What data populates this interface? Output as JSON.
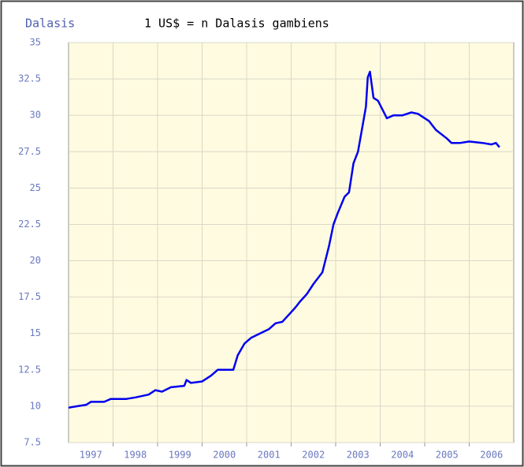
{
  "chart_data": {
    "type": "line",
    "unit_label": "Dalasis",
    "title": "1 US$ = n Dalasis gambiens",
    "x": [
      1997.0,
      1997.2,
      1997.4,
      1997.5,
      1997.8,
      1997.95,
      1998.3,
      1998.5,
      1998.8,
      1998.95,
      1999.1,
      1999.3,
      1999.6,
      1999.65,
      1999.75,
      2000.0,
      2000.2,
      2000.35,
      2000.7,
      2000.8,
      2000.95,
      2001.1,
      2001.3,
      2001.5,
      2001.65,
      2001.8,
      2001.95,
      2002.1,
      2002.2,
      2002.35,
      2002.5,
      2002.7,
      2002.85,
      2002.95,
      2003.05,
      2003.2,
      2003.3,
      2003.4,
      2003.5,
      2003.6,
      2003.68,
      2003.72,
      2003.77,
      2003.85,
      2003.95,
      2004.15,
      2004.3,
      2004.5,
      2004.7,
      2004.85,
      2005.1,
      2005.25,
      2005.5,
      2005.6,
      2005.8,
      2006.0,
      2006.3,
      2006.5,
      2006.6,
      2006.68
    ],
    "series": [
      {
        "name": "Dalasis",
        "color": "#0000ee",
        "values": [
          9.9,
          10.0,
          10.1,
          10.3,
          10.3,
          10.5,
          10.5,
          10.6,
          10.8,
          11.1,
          11.0,
          11.3,
          11.4,
          11.8,
          11.6,
          11.7,
          12.1,
          12.5,
          12.5,
          13.5,
          14.3,
          14.7,
          15.0,
          15.3,
          15.7,
          15.8,
          16.3,
          16.8,
          17.2,
          17.7,
          18.4,
          19.2,
          21.0,
          22.5,
          23.3,
          24.4,
          24.7,
          26.7,
          27.5,
          29.2,
          30.6,
          32.6,
          33.0,
          31.2,
          31.0,
          29.8,
          30.0,
          30.0,
          30.2,
          30.1,
          29.6,
          29.0,
          28.4,
          28.1,
          28.1,
          28.2,
          28.1,
          28.0,
          28.1,
          27.8
        ]
      }
    ],
    "xlim": [
      1997,
      2007
    ],
    "xticks": [
      1998,
      1999,
      2000,
      2001,
      2002,
      2003,
      2004,
      2005,
      2006
    ],
    "year_labels": [
      "1997",
      "1998",
      "1999",
      "2000",
      "2001",
      "2002",
      "2003",
      "2004",
      "2005",
      "2006"
    ],
    "ylim": [
      7.5,
      35
    ],
    "yticks": [
      7.5,
      10,
      12.5,
      15,
      17.5,
      20,
      22.5,
      25,
      27.5,
      30,
      32.5,
      35
    ],
    "grid": true
  }
}
